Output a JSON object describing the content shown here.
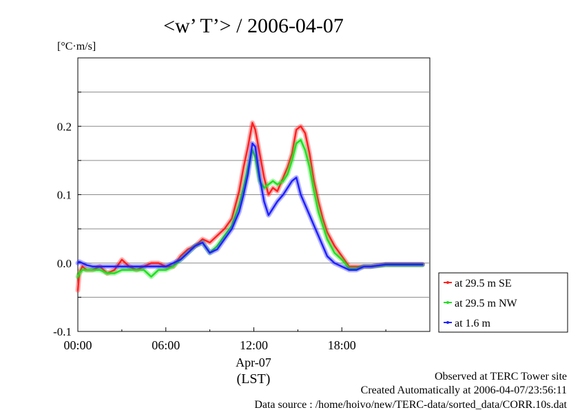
{
  "chart_data": {
    "type": "line",
    "title": "<w’ T’> / 2006-04-07",
    "ylabel": "[°C·m/s]",
    "ylim": [
      -0.1,
      0.3
    ],
    "y_ticks": [
      {
        "value": -0.1,
        "label": "-0.1"
      },
      {
        "value": 0.0,
        "label": "0.0"
      },
      {
        "value": 0.1,
        "label": "0.1"
      },
      {
        "value": 0.2,
        "label": "0.2"
      }
    ],
    "y_gridlines": [
      -0.05,
      0.0,
      0.05,
      0.1,
      0.15,
      0.2,
      0.25
    ],
    "xlim": [
      0,
      24
    ],
    "x_ticks": [
      {
        "value": 0,
        "label": "00:00"
      },
      {
        "value": 6,
        "label": "06:00"
      },
      {
        "value": 12,
        "label": "12:00"
      },
      {
        "value": 18,
        "label": "18:00"
      }
    ],
    "x_date_label": "Apr-07",
    "x_unit_label": "(LST)",
    "grid": "horizontal",
    "legend_position": "right",
    "series": [
      {
        "name": "at 29.5 m SE",
        "color": "#ff2020",
        "x": [
          0,
          0.1,
          0.3,
          0.6,
          1.0,
          1.5,
          2.0,
          2.5,
          3.0,
          3.5,
          4.0,
          4.5,
          5.0,
          5.5,
          6.0,
          6.5,
          7.0,
          7.5,
          8.0,
          8.5,
          9.0,
          9.5,
          10.0,
          10.5,
          11.0,
          11.3,
          11.6,
          11.9,
          12.1,
          12.4,
          12.7,
          13.0,
          13.3,
          13.6,
          14.0,
          14.3,
          14.6,
          14.9,
          15.2,
          15.5,
          15.8,
          16.1,
          16.4,
          16.7,
          17.0,
          17.5,
          18.0,
          18.5,
          19.0,
          19.5,
          20.0,
          21.0,
          22.0,
          23.0,
          23.5
        ],
        "y": [
          -0.04,
          -0.015,
          -0.005,
          -0.01,
          -0.01,
          -0.005,
          -0.015,
          -0.01,
          0.005,
          -0.005,
          -0.01,
          -0.005,
          0.0,
          0.0,
          -0.005,
          -0.005,
          0.01,
          0.02,
          0.025,
          0.035,
          0.03,
          0.04,
          0.05,
          0.065,
          0.105,
          0.14,
          0.17,
          0.205,
          0.195,
          0.16,
          0.125,
          0.1,
          0.11,
          0.105,
          0.125,
          0.14,
          0.16,
          0.195,
          0.2,
          0.19,
          0.16,
          0.12,
          0.09,
          0.065,
          0.045,
          0.025,
          0.01,
          -0.005,
          -0.005,
          -0.005,
          -0.005,
          -0.002,
          -0.002,
          -0.002,
          -0.002
        ]
      },
      {
        "name": "at 29.5 m NW",
        "color": "#20e020",
        "x": [
          0,
          0.1,
          0.3,
          0.6,
          1.0,
          1.5,
          2.0,
          2.5,
          3.0,
          3.5,
          4.0,
          4.5,
          5.0,
          5.5,
          6.0,
          6.5,
          7.0,
          7.5,
          8.0,
          8.5,
          9.0,
          9.5,
          10.0,
          10.5,
          11.0,
          11.3,
          11.6,
          11.9,
          12.1,
          12.4,
          12.7,
          13.0,
          13.3,
          13.6,
          14.0,
          14.3,
          14.6,
          14.9,
          15.2,
          15.5,
          15.8,
          16.1,
          16.4,
          16.7,
          17.0,
          17.5,
          18.0,
          18.5,
          19.0,
          19.5,
          20.0,
          21.0,
          22.0,
          23.0,
          23.5
        ],
        "y": [
          -0.02,
          -0.015,
          -0.01,
          -0.01,
          -0.01,
          -0.01,
          -0.015,
          -0.015,
          -0.01,
          -0.01,
          -0.01,
          -0.01,
          -0.02,
          -0.01,
          -0.01,
          -0.005,
          0.005,
          0.015,
          0.025,
          0.03,
          0.015,
          0.025,
          0.04,
          0.055,
          0.085,
          0.11,
          0.14,
          0.165,
          0.155,
          0.12,
          0.11,
          0.115,
          0.12,
          0.115,
          0.12,
          0.13,
          0.15,
          0.175,
          0.18,
          0.165,
          0.14,
          0.105,
          0.075,
          0.055,
          0.035,
          0.015,
          0.005,
          -0.008,
          -0.008,
          -0.005,
          -0.005,
          -0.003,
          -0.003,
          -0.003,
          -0.003
        ]
      },
      {
        "name": "at 1.6 m",
        "color": "#2020ff",
        "x": [
          0,
          0.1,
          0.3,
          0.6,
          1.0,
          1.5,
          2.0,
          2.5,
          3.0,
          3.5,
          4.0,
          4.5,
          5.0,
          5.5,
          6.0,
          6.5,
          7.0,
          7.5,
          8.0,
          8.5,
          9.0,
          9.5,
          10.0,
          10.5,
          11.0,
          11.3,
          11.6,
          11.9,
          12.1,
          12.4,
          12.7,
          13.0,
          13.3,
          13.6,
          14.0,
          14.3,
          14.6,
          14.9,
          15.2,
          15.5,
          15.8,
          16.1,
          16.4,
          16.7,
          17.0,
          17.5,
          18.0,
          18.5,
          19.0,
          19.5,
          20.0,
          21.0,
          22.0,
          23.0,
          23.5
        ],
        "y": [
          0.0,
          0.002,
          0.0,
          -0.003,
          -0.005,
          -0.005,
          -0.005,
          -0.005,
          -0.005,
          -0.005,
          -0.005,
          -0.005,
          -0.005,
          -0.005,
          -0.005,
          0.0,
          0.005,
          0.015,
          0.025,
          0.03,
          0.015,
          0.02,
          0.035,
          0.05,
          0.075,
          0.1,
          0.13,
          0.175,
          0.17,
          0.125,
          0.09,
          0.07,
          0.08,
          0.09,
          0.1,
          0.11,
          0.12,
          0.125,
          0.1,
          0.085,
          0.07,
          0.055,
          0.04,
          0.025,
          0.01,
          0.0,
          -0.005,
          -0.01,
          -0.01,
          -0.005,
          -0.005,
          -0.002,
          -0.002,
          -0.002,
          -0.002
        ]
      }
    ]
  },
  "footer": {
    "site": "Observed at TERC Tower site",
    "created": "Created Automatically at 2006-04-07/23:56:11",
    "source": "Data source : /home/hoivo/new/TERC-data/sorted_data/CORR.10s.dat"
  }
}
